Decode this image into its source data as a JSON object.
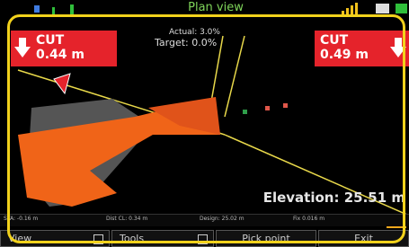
{
  "header": {
    "title": "Plan view"
  },
  "cut_left": {
    "label": "CUT",
    "value": "0.44 m"
  },
  "cut_right": {
    "label": "CUT",
    "value": "0.49 m"
  },
  "slope": {
    "actual": "Actual: 3.0%",
    "target": "Target: 0.0%"
  },
  "elevation": "Elevation: 25.51 m",
  "status": {
    "sta": "STA: -0.16 m",
    "dist_cl": "Dist CL: 0.34 m",
    "design": "Design: 25.02 m",
    "fix": "Fix 0.016 m"
  },
  "buttons": [
    "View",
    "Tools",
    "Pick point",
    "Exit"
  ]
}
